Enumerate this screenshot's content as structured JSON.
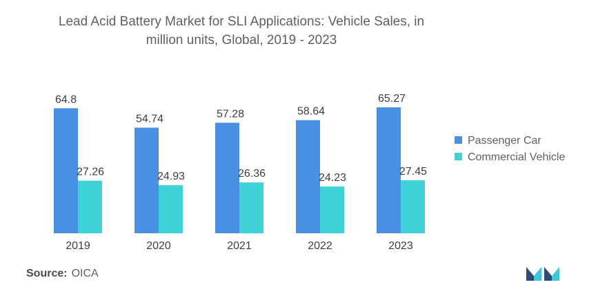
{
  "chart_data": {
    "type": "bar",
    "title_lines": [
      "Lead Acid Battery Market for SLI Applications: Vehicle Sales, in",
      "million units, Global, 2019 - 2023"
    ],
    "categories": [
      "2019",
      "2020",
      "2021",
      "2022",
      "2023"
    ],
    "series": [
      {
        "name": "Passenger Car",
        "values": [
          64.8,
          54.74,
          57.28,
          58.64,
          65.27
        ],
        "color": "#4a90e2"
      },
      {
        "name": "Commercial Vehicle",
        "values": [
          27.26,
          24.93,
          26.36,
          24.23,
          27.45
        ],
        "color": "#3dd3d9"
      }
    ],
    "ylim": [
      0,
      65.27
    ],
    "grid": false,
    "legend_position": "right"
  },
  "source": {
    "label": "Source:",
    "value": "OICA"
  },
  "logo": {
    "icon": "mordor-intelligence-logo-icon",
    "colors": [
      "#2e4b78",
      "#3fc6d6"
    ]
  }
}
